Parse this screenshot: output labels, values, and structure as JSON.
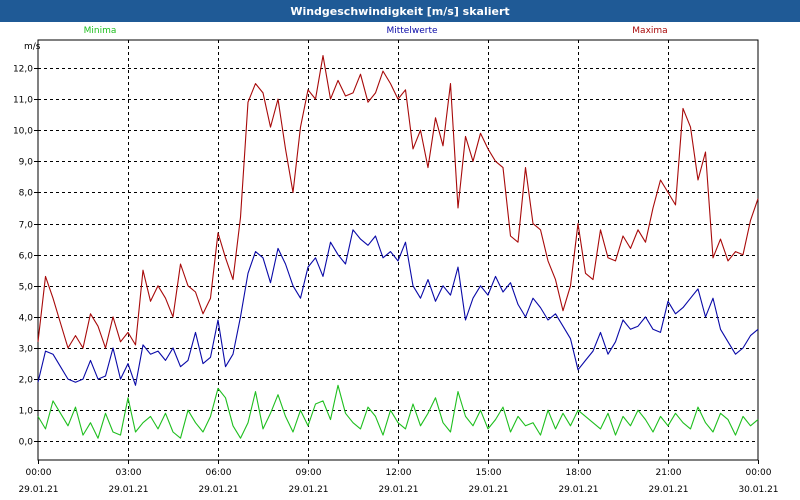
{
  "window": {
    "title": "Windgeschwindigkeit [m/s] skaliert"
  },
  "chart_data": {
    "type": "line",
    "title": "Windgeschwindigkeit [m/s] skaliert",
    "ylabel": "m/s",
    "ylim": [
      -0.6,
      12.9
    ],
    "yticks": [
      "0,0",
      "1,0",
      "2,0",
      "3,0",
      "4,0",
      "5,0",
      "6,0",
      "7,0",
      "8,0",
      "9,0",
      "10,0",
      "11,0",
      "12,0"
    ],
    "xlim": [
      0,
      24
    ],
    "xticks": [
      {
        "time": "00:00",
        "date": "29.01.21"
      },
      {
        "time": "03:00",
        "date": "29.01.21"
      },
      {
        "time": "06:00",
        "date": "29.01.21"
      },
      {
        "time": "09:00",
        "date": "29.01.21"
      },
      {
        "time": "12:00",
        "date": "29.01.21"
      },
      {
        "time": "15:00",
        "date": "29.01.21"
      },
      {
        "time": "18:00",
        "date": "29.01.21"
      },
      {
        "time": "21:00",
        "date": "29.01.21"
      },
      {
        "time": "00:00",
        "date": "30.01.21"
      }
    ],
    "grid": true,
    "series": [
      {
        "name": "Minima",
        "color": "#1fbf1f",
        "x": [
          0,
          0.25,
          0.5,
          0.75,
          1,
          1.25,
          1.5,
          1.75,
          2,
          2.25,
          2.5,
          2.75,
          3,
          3.25,
          3.5,
          3.75,
          4,
          4.25,
          4.5,
          4.75,
          5,
          5.25,
          5.5,
          5.75,
          6,
          6.25,
          6.5,
          6.75,
          7,
          7.25,
          7.5,
          7.75,
          8,
          8.25,
          8.5,
          8.75,
          9,
          9.25,
          9.5,
          9.75,
          10,
          10.25,
          10.5,
          10.75,
          11,
          11.25,
          11.5,
          11.75,
          12,
          12.25,
          12.5,
          12.75,
          13,
          13.25,
          13.5,
          13.75,
          14,
          14.25,
          14.5,
          14.75,
          15,
          15.25,
          15.5,
          15.75,
          16,
          16.25,
          16.5,
          16.75,
          17,
          17.25,
          17.5,
          17.75,
          18,
          18.25,
          18.5,
          18.75,
          19,
          19.25,
          19.5,
          19.75,
          20,
          20.25,
          20.5,
          20.75,
          21,
          21.25,
          21.5,
          21.75,
          22,
          22.25,
          22.5,
          22.75,
          23,
          23.25,
          23.5,
          23.75,
          24
        ],
        "values": [
          0.8,
          0.4,
          1.3,
          0.9,
          0.5,
          1.1,
          0.2,
          0.6,
          0.1,
          0.9,
          0.3,
          0.2,
          1.4,
          0.3,
          0.6,
          0.8,
          0.4,
          0.9,
          0.3,
          0.1,
          1.0,
          0.6,
          0.3,
          0.8,
          1.7,
          1.4,
          0.5,
          0.1,
          0.6,
          1.6,
          0.4,
          0.9,
          1.5,
          0.8,
          0.3,
          1.0,
          0.5,
          1.2,
          1.3,
          0.7,
          1.8,
          0.9,
          0.6,
          0.4,
          1.1,
          0.8,
          0.2,
          1.0,
          0.6,
          0.4,
          1.2,
          0.5,
          0.9,
          1.4,
          0.6,
          0.3,
          1.6,
          0.8,
          0.5,
          1.0,
          0.4,
          0.7,
          1.1,
          0.3,
          0.8,
          0.5,
          0.6,
          0.2,
          1.0,
          0.4,
          0.9,
          0.5,
          1.0,
          0.8,
          0.6,
          0.4,
          0.9,
          0.2,
          0.8,
          0.5,
          1.0,
          0.7,
          0.3,
          0.8,
          0.5,
          0.9,
          0.6,
          0.4,
          1.1,
          0.6,
          0.3,
          0.9,
          0.7,
          0.2,
          0.8,
          0.5,
          0.7
        ]
      },
      {
        "name": "Mittelwerte",
        "color": "#0a0aa8",
        "x": [
          0,
          0.25,
          0.5,
          0.75,
          1,
          1.25,
          1.5,
          1.75,
          2,
          2.25,
          2.5,
          2.75,
          3,
          3.25,
          3.5,
          3.75,
          4,
          4.25,
          4.5,
          4.75,
          5,
          5.25,
          5.5,
          5.75,
          6,
          6.25,
          6.5,
          6.75,
          7,
          7.25,
          7.5,
          7.75,
          8,
          8.25,
          8.5,
          8.75,
          9,
          9.25,
          9.5,
          9.75,
          10,
          10.25,
          10.5,
          10.75,
          11,
          11.25,
          11.5,
          11.75,
          12,
          12.25,
          12.5,
          12.75,
          13,
          13.25,
          13.5,
          13.75,
          14,
          14.25,
          14.5,
          14.75,
          15,
          15.25,
          15.5,
          15.75,
          16,
          16.25,
          16.5,
          16.75,
          17,
          17.25,
          17.5,
          17.75,
          18,
          18.25,
          18.5,
          18.75,
          19,
          19.25,
          19.5,
          19.75,
          20,
          20.25,
          20.5,
          20.75,
          21,
          21.25,
          21.5,
          21.75,
          22,
          22.25,
          22.5,
          22.75,
          23,
          23.25,
          23.5,
          23.75,
          24
        ],
        "values": [
          1.9,
          2.9,
          2.8,
          2.4,
          2.0,
          1.9,
          2.0,
          2.6,
          2.0,
          2.1,
          3.0,
          2.0,
          2.5,
          1.8,
          3.1,
          2.8,
          2.9,
          2.6,
          3.0,
          2.4,
          2.6,
          3.5,
          2.5,
          2.7,
          3.9,
          2.4,
          2.8,
          4.0,
          5.4,
          6.1,
          5.9,
          5.1,
          6.2,
          5.7,
          5.0,
          4.6,
          5.6,
          5.9,
          5.3,
          6.4,
          6.0,
          5.7,
          6.8,
          6.5,
          6.3,
          6.6,
          5.9,
          6.1,
          5.8,
          6.4,
          5.0,
          4.6,
          5.2,
          4.5,
          5.0,
          4.7,
          5.6,
          3.9,
          4.6,
          5.0,
          4.7,
          5.3,
          4.8,
          5.1,
          4.4,
          4.0,
          4.6,
          4.3,
          3.9,
          4.1,
          3.7,
          3.3,
          2.3,
          2.6,
          2.9,
          3.5,
          2.8,
          3.2,
          3.9,
          3.6,
          3.7,
          4.0,
          3.6,
          3.5,
          4.5,
          4.1,
          4.3,
          4.6,
          4.9,
          4.0,
          4.6,
          3.6,
          3.2,
          2.8,
          3.0,
          3.4,
          3.6
        ]
      },
      {
        "name": "Maxima",
        "color": "#a80a0a",
        "x": [
          0,
          0.25,
          0.5,
          0.75,
          1,
          1.25,
          1.5,
          1.75,
          2,
          2.25,
          2.5,
          2.75,
          3,
          3.25,
          3.5,
          3.75,
          4,
          4.25,
          4.5,
          4.75,
          5,
          5.25,
          5.5,
          5.75,
          6,
          6.25,
          6.5,
          6.75,
          7,
          7.25,
          7.5,
          7.75,
          8,
          8.25,
          8.5,
          8.75,
          9,
          9.25,
          9.5,
          9.75,
          10,
          10.25,
          10.5,
          10.75,
          11,
          11.25,
          11.5,
          11.75,
          12,
          12.25,
          12.5,
          12.75,
          13,
          13.25,
          13.5,
          13.75,
          14,
          14.25,
          14.5,
          14.75,
          15,
          15.25,
          15.5,
          15.75,
          16,
          16.25,
          16.5,
          16.75,
          17,
          17.25,
          17.5,
          17.75,
          18,
          18.25,
          18.5,
          18.75,
          19,
          19.25,
          19.5,
          19.75,
          20,
          20.25,
          20.5,
          20.75,
          21,
          21.25,
          21.5,
          21.75,
          22,
          22.25,
          22.5,
          22.75,
          23,
          23.25,
          23.5,
          23.75,
          24
        ],
        "values": [
          3.2,
          5.3,
          4.6,
          3.8,
          3.0,
          3.4,
          3.0,
          4.1,
          3.7,
          3.0,
          4.0,
          3.2,
          3.5,
          3.1,
          5.5,
          4.5,
          5.0,
          4.6,
          4.0,
          5.7,
          5.0,
          4.8,
          4.1,
          4.6,
          6.7,
          5.9,
          5.2,
          7.2,
          10.9,
          11.5,
          11.2,
          10.1,
          11.0,
          9.4,
          8.0,
          10.1,
          11.3,
          11.0,
          12.4,
          11.0,
          11.6,
          11.1,
          11.2,
          11.8,
          10.9,
          11.2,
          11.9,
          11.5,
          11.0,
          11.3,
          9.4,
          10.0,
          8.8,
          10.4,
          9.5,
          11.5,
          7.5,
          9.8,
          9.0,
          9.9,
          9.4,
          9.0,
          8.8,
          6.6,
          6.4,
          8.8,
          7.0,
          6.8,
          5.8,
          5.2,
          4.2,
          5.0,
          7.0,
          5.4,
          5.2,
          6.8,
          5.9,
          5.8,
          6.6,
          6.2,
          6.8,
          6.4,
          7.5,
          8.4,
          8.0,
          7.6,
          10.7,
          10.1,
          8.4,
          9.3,
          5.9,
          6.5,
          5.8,
          6.1,
          6.0,
          7.1,
          7.8
        ]
      }
    ]
  }
}
